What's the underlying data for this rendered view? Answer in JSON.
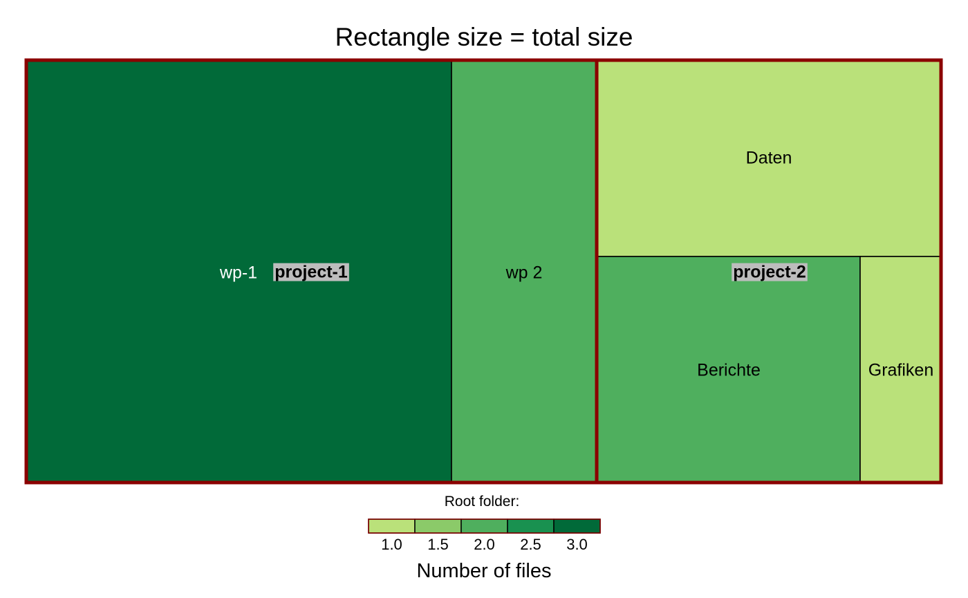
{
  "chart_data": {
    "type": "treemap",
    "title": "Rectangle size = total size",
    "groups": [
      {
        "name": "project-1",
        "children": [
          {
            "name": "wp-1",
            "value": 3.0
          },
          {
            "name": "wp 2",
            "value": 2.0
          }
        ]
      },
      {
        "name": "project-2",
        "children": [
          {
            "name": "Daten",
            "value": 1.0
          },
          {
            "name": "Berichte",
            "value": 2.0
          },
          {
            "name": "Grafiken",
            "value": 1.0
          }
        ]
      }
    ],
    "legend": {
      "heading": "Root folder:",
      "title": "Number of files",
      "ticks": [
        "1.0",
        "1.5",
        "2.0",
        "2.5",
        "3.0"
      ],
      "colors": [
        "#bae17a",
        "#8bca69",
        "#4faf5e",
        "#199150",
        "#016a39"
      ]
    },
    "group_border_color": "#8b0000",
    "group_label_bg": "#bdbdbd"
  }
}
